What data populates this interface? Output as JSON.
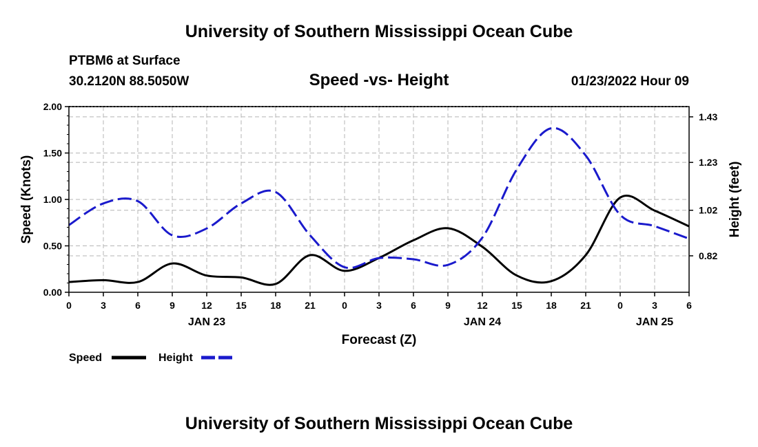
{
  "header": {
    "title": "University of Southern Mississippi Ocean Cube",
    "station": "PTBM6 at Surface",
    "coords": "30.2120N  88.5050W",
    "subtitle": "Speed -vs- Height",
    "datetime": "01/23/2022 Hour 09"
  },
  "footer": {
    "title": "University of Southern Mississippi Ocean Cube"
  },
  "colors": {
    "speed": "#000000",
    "height": "#1a1acc",
    "grid": "#b4b4b4"
  },
  "chart_data": {
    "type": "line",
    "title": "Speed -vs- Height",
    "xlabel": "Forecast (Z)",
    "ylabel": "Speed (Knots)",
    "ylabel_right": "Height (feet)",
    "xlim": [
      0,
      54
    ],
    "ylim": [
      0,
      2.0
    ],
    "ylim_right": [
      0.66,
      1.475
    ],
    "x_ticks": [
      0,
      3,
      6,
      9,
      12,
      15,
      18,
      21,
      24,
      27,
      30,
      33,
      36,
      39,
      42,
      45,
      48,
      51,
      54
    ],
    "x_tick_labels": [
      "0",
      "3",
      "6",
      "9",
      "12",
      "15",
      "18",
      "21",
      "0",
      "3",
      "6",
      "9",
      "12",
      "15",
      "18",
      "21",
      "0",
      "3",
      "6"
    ],
    "date_labels": [
      {
        "x": 12,
        "label": "JAN 23"
      },
      {
        "x": 36,
        "label": "JAN 24"
      },
      {
        "x": 51,
        "label": "JAN 25"
      }
    ],
    "y_ticks": [
      0.0,
      0.5,
      1.0,
      1.5,
      2.0
    ],
    "y_tick_labels": [
      "0.00",
      "0.50",
      "1.00",
      "1.50",
      "2.00"
    ],
    "y_ticks_right": [
      0.82,
      1.02,
      1.23,
      1.43
    ],
    "y_tick_labels_right": [
      "0.82",
      "1.02",
      "1.23",
      "1.43"
    ],
    "grid": true,
    "legend": [
      {
        "name": "Speed",
        "style": "solid"
      },
      {
        "name": "Height",
        "style": "dashed"
      }
    ],
    "series": [
      {
        "name": "Speed",
        "axis": "left",
        "style": "solid",
        "x": [
          0,
          3,
          6,
          9,
          12,
          15,
          18,
          21,
          24,
          27,
          30,
          33,
          36,
          39,
          42,
          45,
          48,
          51,
          54
        ],
        "values": [
          0.11,
          0.13,
          0.11,
          0.31,
          0.18,
          0.16,
          0.09,
          0.4,
          0.23,
          0.37,
          0.56,
          0.69,
          0.49,
          0.18,
          0.12,
          0.4,
          1.02,
          0.88,
          0.71
        ]
      },
      {
        "name": "Height",
        "axis": "right",
        "style": "dashed",
        "x": [
          0,
          3,
          6,
          9,
          12,
          15,
          18,
          21,
          24,
          27,
          30,
          33,
          36,
          39,
          42,
          45,
          48,
          51,
          54
        ],
        "values": [
          0.955,
          1.05,
          1.06,
          0.91,
          0.94,
          1.05,
          1.1,
          0.91,
          0.77,
          0.81,
          0.805,
          0.78,
          0.9,
          1.2,
          1.38,
          1.26,
          1.0,
          0.95,
          0.895
        ]
      }
    ]
  }
}
